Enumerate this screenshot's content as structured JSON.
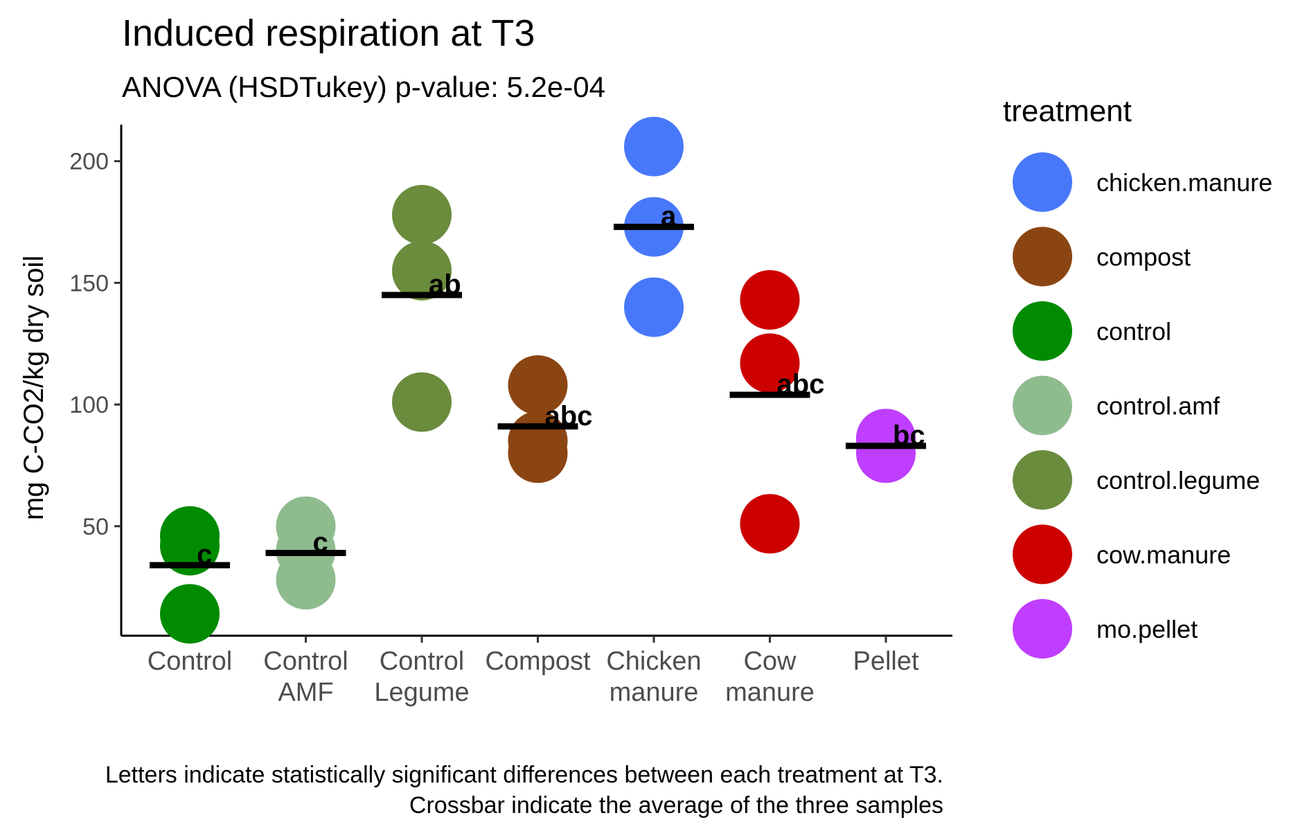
{
  "chart_data": {
    "type": "scatter",
    "title": "Induced respiration at T3",
    "subtitle": "ANOVA (HSDTukey) p-value: 5.2e-04",
    "ylabel": "mg C-CO2/kg dry soil",
    "xlabel": "",
    "ylim": [
      5,
      215
    ],
    "yticks": [
      50,
      100,
      150,
      200
    ],
    "categories": [
      [
        "Control"
      ],
      [
        "Control",
        "AMF"
      ],
      [
        "Control",
        "Legume"
      ],
      [
        "Compost"
      ],
      [
        "Chicken",
        "manure"
      ],
      [
        "Cow",
        "manure"
      ],
      [
        "Pellet"
      ]
    ],
    "groups": [
      {
        "treatment": "control",
        "values": [
          14,
          42,
          46
        ],
        "mean": 34,
        "letter": "c"
      },
      {
        "treatment": "control.amf",
        "values": [
          28,
          40,
          50
        ],
        "mean": 39,
        "letter": "c"
      },
      {
        "treatment": "control.legume",
        "values": [
          101,
          155,
          178
        ],
        "mean": 145,
        "letter": "ab"
      },
      {
        "treatment": "compost",
        "values": [
          80,
          85,
          108
        ],
        "mean": 91,
        "letter": "abc"
      },
      {
        "treatment": "chicken.manure",
        "values": [
          140,
          173,
          206
        ],
        "mean": 173,
        "letter": "a"
      },
      {
        "treatment": "cow.manure",
        "values": [
          51,
          117,
          143
        ],
        "mean": 104,
        "letter": "abc"
      },
      {
        "treatment": "mo.pellet",
        "values": [
          80,
          86,
          86
        ],
        "mean": 83,
        "letter": "bc"
      }
    ],
    "legend": {
      "title": "treatment",
      "position": "right",
      "entries": [
        {
          "name": "chicken.manure",
          "color": "#4878FA"
        },
        {
          "name": "compost",
          "color": "#8B4513"
        },
        {
          "name": "control",
          "color": "#008B00"
        },
        {
          "name": "control.amf",
          "color": "#8FBC8F"
        },
        {
          "name": "control.legume",
          "color": "#6B8B3D"
        },
        {
          "name": "cow.manure",
          "color": "#CD0000"
        },
        {
          "name": "mo.pellet",
          "color": "#BF3EFF"
        }
      ]
    },
    "caption": [
      "Letters indicate statistically significant differences between each treatment at T3.",
      "Crossbar indicate the average of the three samples"
    ],
    "grid": false
  }
}
